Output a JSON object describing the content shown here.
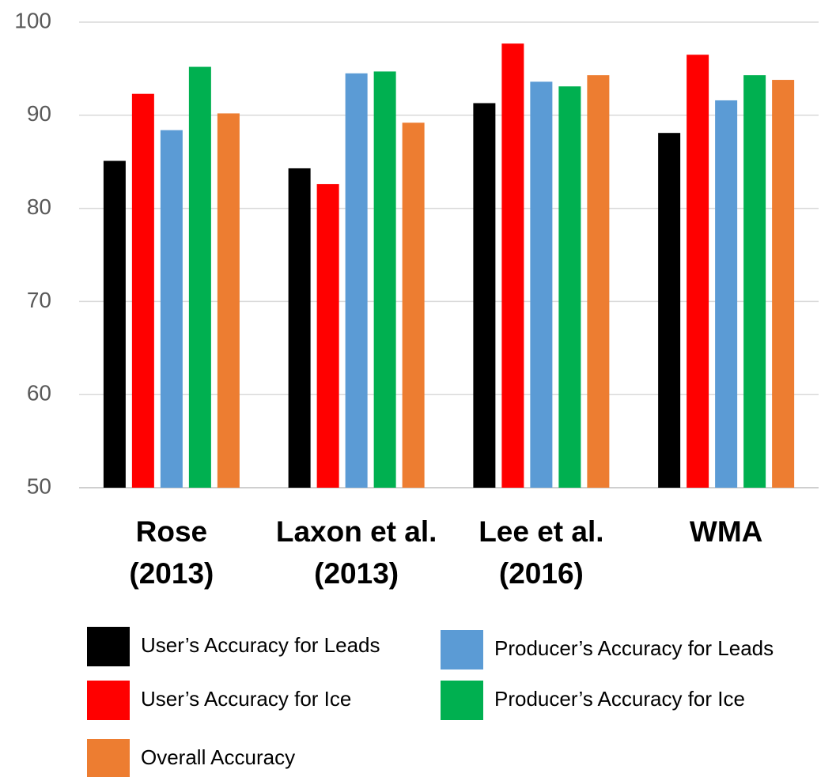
{
  "chart_data": {
    "type": "bar",
    "categories": [
      [
        "Rose",
        "(2013)"
      ],
      [
        "Laxon et al.",
        "(2013)"
      ],
      [
        "Lee et al.",
        "(2016)"
      ],
      [
        "WMA"
      ]
    ],
    "series": [
      {
        "name": "User’s Accuracy for Leads",
        "color": "#000000",
        "values": [
          85.1,
          84.3,
          91.3,
          88.1
        ]
      },
      {
        "name": "User’s Accuracy for Ice",
        "color": "#ff0000",
        "values": [
          92.3,
          82.6,
          97.7,
          96.5
        ]
      },
      {
        "name": "Producer’s Accuracy for Leads",
        "color": "#5b9bd5",
        "values": [
          88.4,
          94.5,
          93.6,
          91.6
        ]
      },
      {
        "name": "Producer’s Accuracy for Ice",
        "color": "#00b050",
        "values": [
          95.2,
          94.7,
          93.1,
          94.3
        ]
      },
      {
        "name": "Overall Accuracy",
        "color": "#ed7d31",
        "values": [
          90.2,
          89.2,
          94.3,
          93.8
        ]
      }
    ],
    "ylim": [
      50,
      100
    ],
    "yticks": [
      50,
      60,
      70,
      80,
      90,
      100
    ],
    "grid": true
  }
}
